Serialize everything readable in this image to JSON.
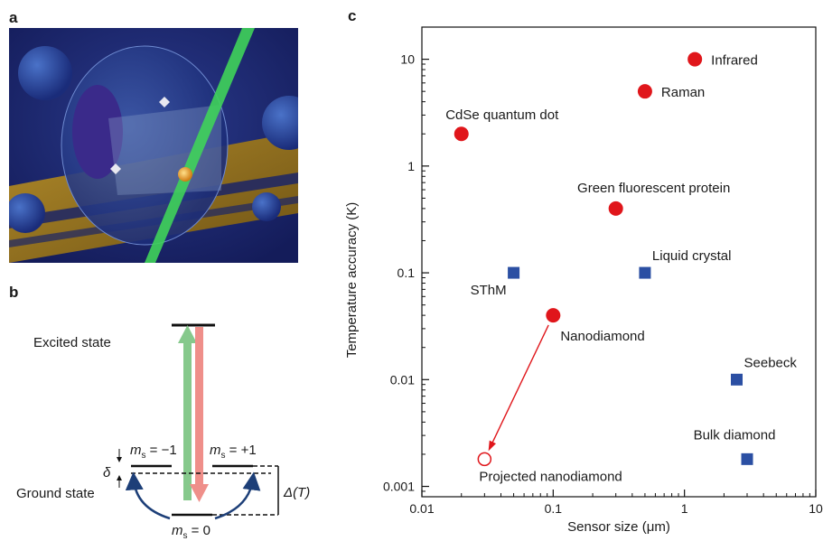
{
  "panels": {
    "a": "a",
    "b": "b",
    "c": "c"
  },
  "diagram_b": {
    "excited_label": "Excited state",
    "ground_label": "Ground state",
    "ms_minus": "m",
    "ms_minus_rest": " = −1",
    "ms_plus": "m",
    "ms_plus_rest": " = +1",
    "ms_zero": "m",
    "ms_zero_rest": " = 0",
    "sub_s": "s",
    "delta": "δ",
    "Delta_T": "Δ(T)"
  },
  "chart_data": {
    "type": "scatter",
    "xlabel": "Sensor size (μm)",
    "ylabel": "Temperature accuracy (K)",
    "xscale": "log",
    "yscale": "log",
    "xlim": [
      0.01,
      10
    ],
    "ylim": [
      0.0008,
      20
    ],
    "x_ticks": [
      0.01,
      0.1,
      1,
      10
    ],
    "x_tick_labels": [
      "0.01",
      "0.1",
      "1",
      "10"
    ],
    "y_ticks": [
      0.001,
      0.01,
      0.1,
      1,
      10
    ],
    "y_tick_labels": [
      "0.001",
      "0.01",
      "0.1",
      "1",
      "10"
    ],
    "points": [
      {
        "label": "Infrared",
        "x": 1.2,
        "y": 10,
        "marker": "circle",
        "color": "#e0161b",
        "label_pos": "right"
      },
      {
        "label": "Raman",
        "x": 0.5,
        "y": 5,
        "marker": "circle",
        "color": "#e0161b",
        "label_pos": "right"
      },
      {
        "label": "CdSe quantum dot",
        "x": 0.02,
        "y": 2,
        "marker": "circle",
        "color": "#e0161b",
        "label_pos": "above"
      },
      {
        "label": "Green fluorescent protein",
        "x": 0.3,
        "y": 0.4,
        "marker": "circle",
        "color": "#e0161b",
        "label_pos": "above"
      },
      {
        "label": "Liquid crystal",
        "x": 0.5,
        "y": 0.1,
        "marker": "square",
        "color": "#2b4fa3",
        "label_pos": "above-right"
      },
      {
        "label": "SThM",
        "x": 0.05,
        "y": 0.1,
        "marker": "square",
        "color": "#2b4fa3",
        "label_pos": "below-left"
      },
      {
        "label": "Nanodiamond",
        "x": 0.1,
        "y": 0.04,
        "marker": "circle",
        "color": "#e0161b",
        "label_pos": "below-right"
      },
      {
        "label": "Seebeck",
        "x": 2.5,
        "y": 0.01,
        "marker": "square",
        "color": "#2b4fa3",
        "label_pos": "above-right"
      },
      {
        "label": "Bulk diamond",
        "x": 3,
        "y": 0.0018,
        "marker": "square",
        "color": "#2b4fa3",
        "label_pos": "above"
      },
      {
        "label": "Projected nanodiamond",
        "x": 0.03,
        "y": 0.0018,
        "marker": "open-circle",
        "color": "#e0161b",
        "label_pos": "below-right"
      }
    ],
    "arrow": {
      "from": [
        0.1,
        0.04
      ],
      "to": [
        0.03,
        0.0018
      ],
      "color": "#e0161b"
    }
  }
}
